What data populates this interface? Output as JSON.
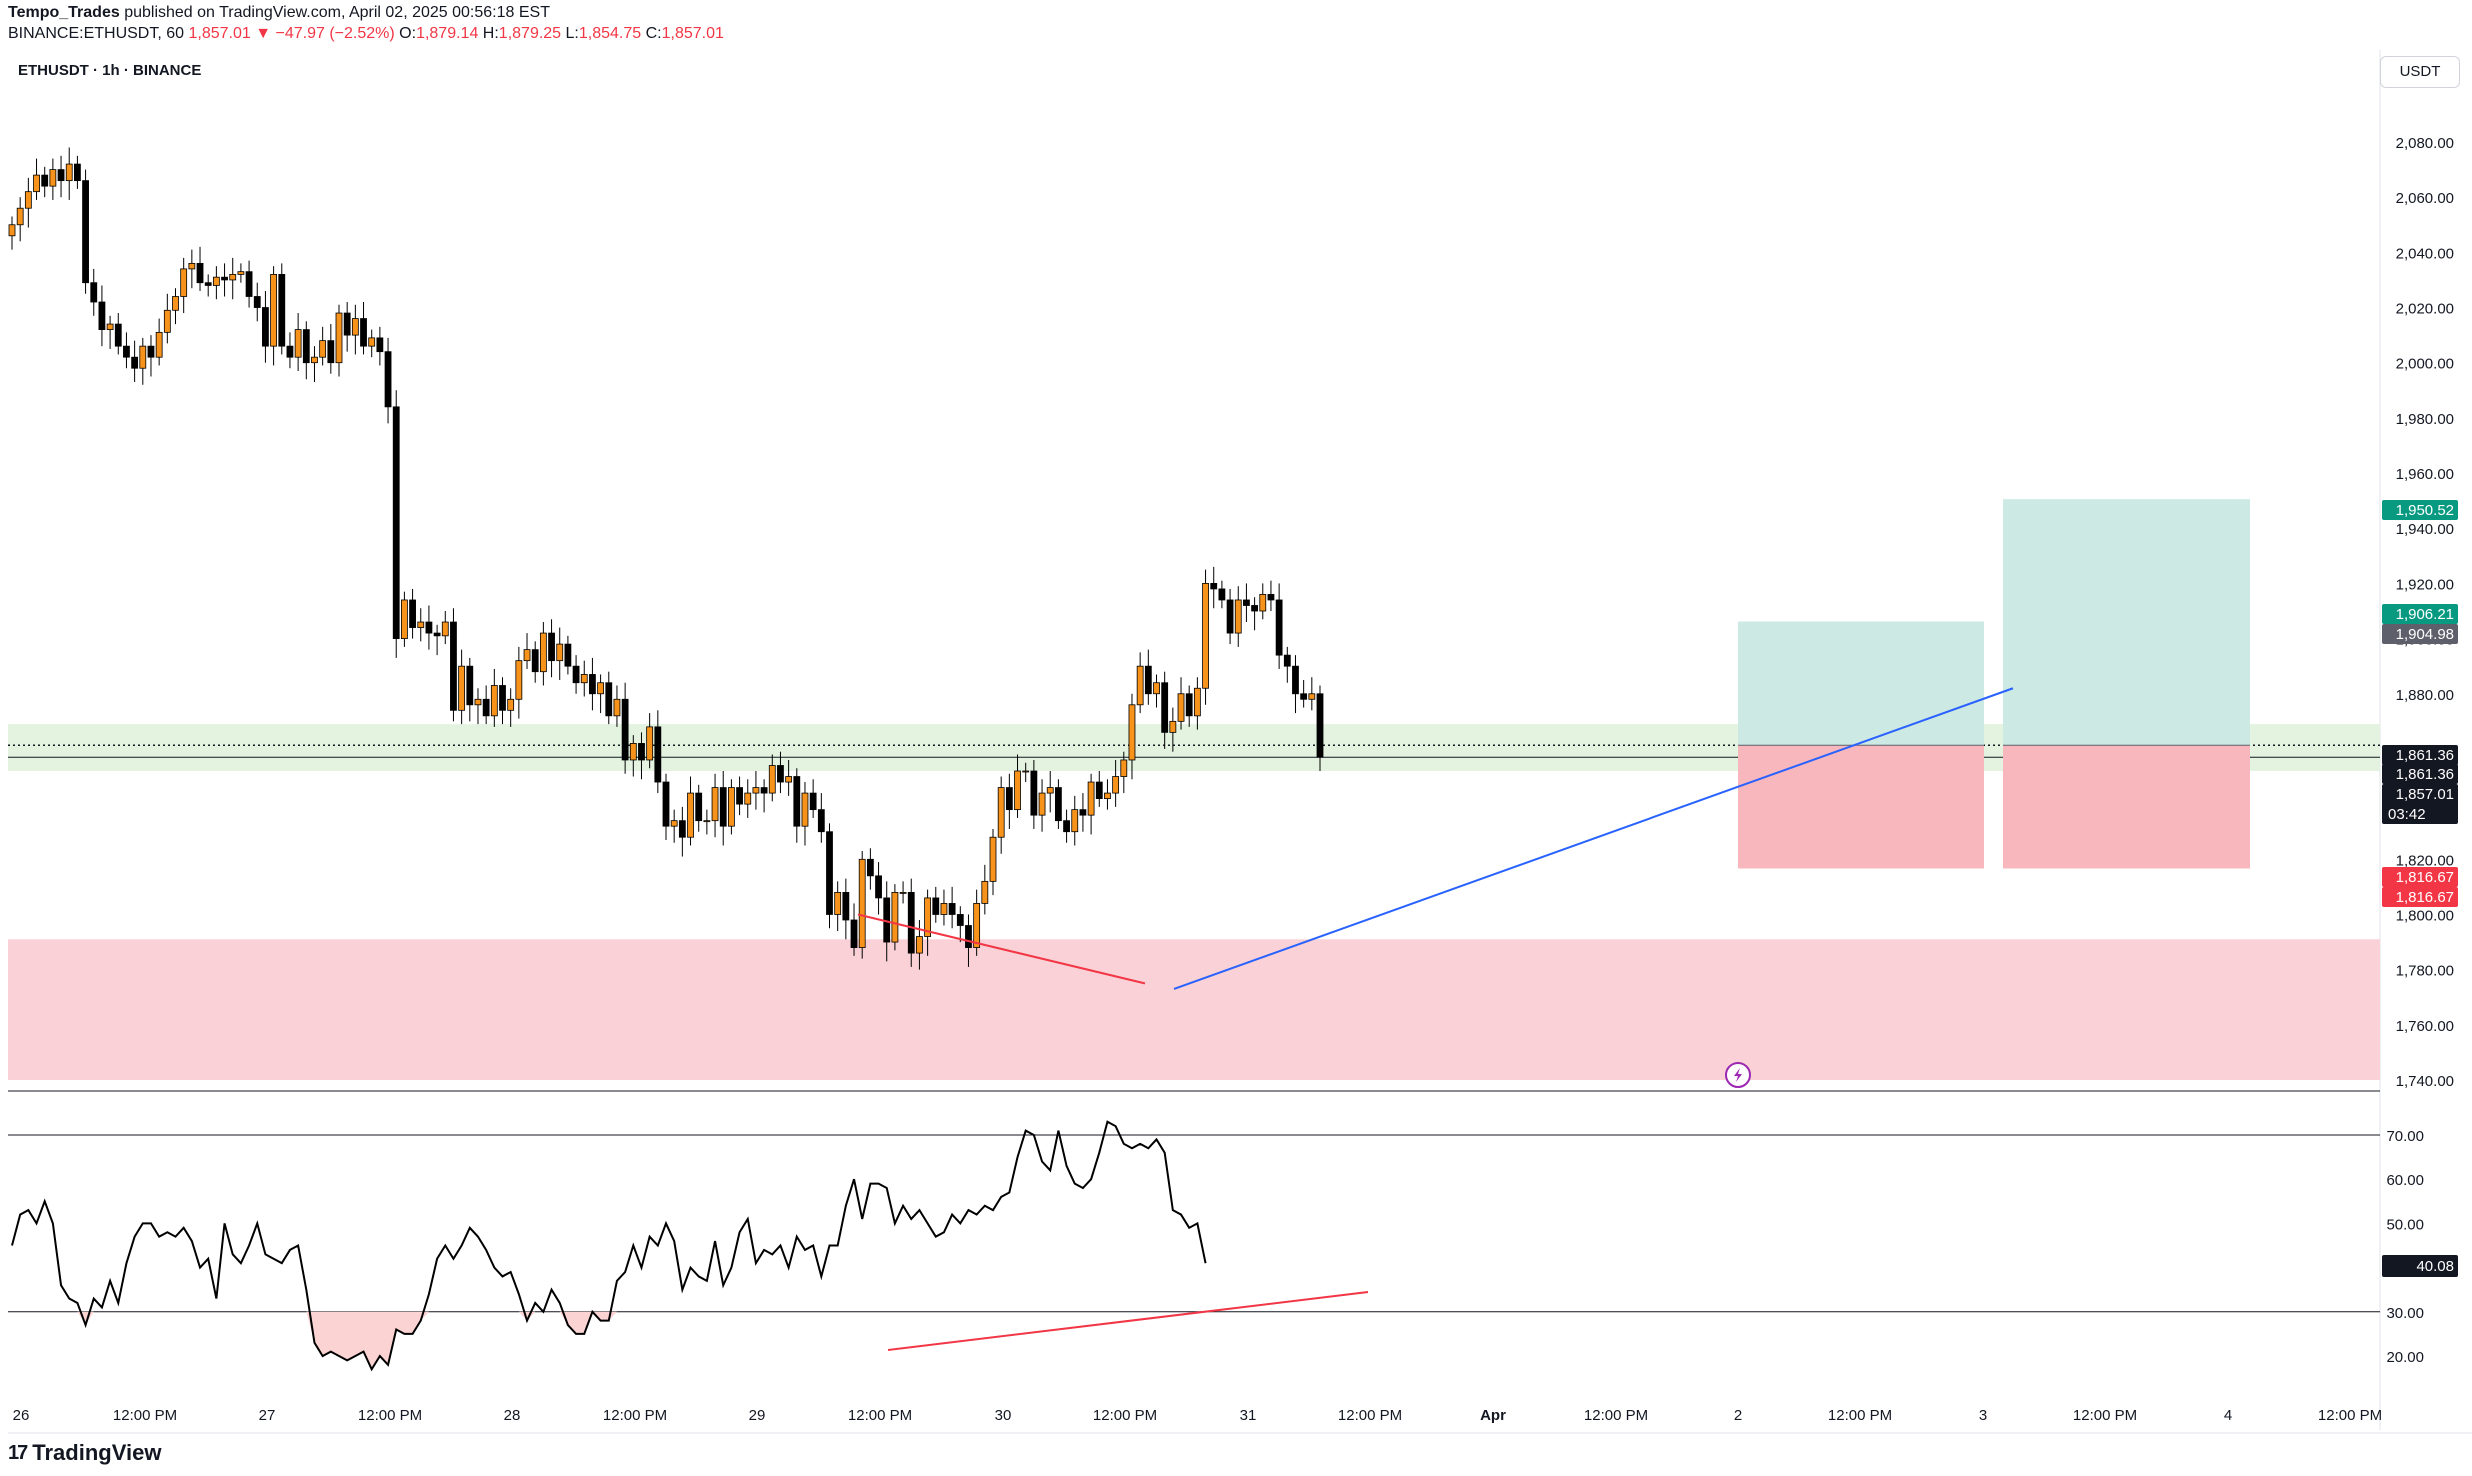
{
  "header": {
    "author": "Tempo_Trades",
    "published": "published on TradingView.com, April 02, 2025 00:56:18 EST",
    "symbol_line": "BINANCE:ETHUSDT, 60",
    "last": "1,857.01",
    "change": "▼ −47.97 (−2.52%)",
    "o_label": "O:",
    "o": "1,879.14",
    "h_label": "H:",
    "h": "1,879.25",
    "l_label": "L:",
    "l": "1,854.75",
    "c_label": "C:",
    "c": "1,857.01"
  },
  "legend_symbol": "ETHUSDT · 1h · BINANCE",
  "currency": "USDT",
  "brand": {
    "logo_icon": "tradingview-logo-icon",
    "name": "TradingView"
  },
  "colors": {
    "up": "#f7931a",
    "down": "#000000",
    "support_zone": "#e3f3e0",
    "demand_zone": "#f9d1d6",
    "target": "#cce9e4",
    "stop": "#f8b6bd",
    "trendline": "#2962ff",
    "divergence": "#f23645"
  },
  "chart_data": {
    "type": "candlestick",
    "price_axis": {
      "ylim": [
        1740,
        2100
      ],
      "ticks": [
        "2,080.00",
        "2,060.00",
        "2,040.00",
        "2,020.00",
        "2,000.00",
        "1,980.00",
        "1,960.00",
        "1,940.00",
        "1,920.00",
        "1,900.00",
        "1,880.00",
        "1,860.00",
        "1,840.00",
        "1,820.00",
        "1,800.00",
        "1,780.00",
        "1,760.00",
        "1,740.00"
      ]
    },
    "time_axis": {
      "ticks": [
        "26",
        "12:00 PM",
        "27",
        "12:00 PM",
        "28",
        "12:00 PM",
        "29",
        "12:00 PM",
        "30",
        "12:00 PM",
        "31",
        "12:00 PM",
        "Apr",
        "12:00 PM",
        "2",
        "12:00 PM",
        "3",
        "12:00 PM",
        "4",
        "12:00 PM"
      ]
    },
    "price_labels": [
      {
        "text": "1,950.52",
        "value": 1950.52,
        "color": "#089981"
      },
      {
        "text": "1,906.21",
        "value": 1906.21,
        "color": "#089981"
      },
      {
        "text": "1,904.98",
        "value": 1904.98,
        "color": "#5d606b"
      },
      {
        "text": "1,861.36",
        "value": 1861.36,
        "color": "#131722"
      },
      {
        "text": "1,861.36",
        "value": 1861.36,
        "color": "#131722"
      },
      {
        "text": "1,857.01",
        "value": 1857.01,
        "color": "#131722",
        "sub": "03:42"
      },
      {
        "text": "1,816.67",
        "value": 1816.67,
        "color": "#f23645"
      },
      {
        "text": "1,816.67",
        "value": 1816.67,
        "color": "#f23645"
      }
    ],
    "zones": [
      {
        "name": "support",
        "from": 1852,
        "to": 1869
      },
      {
        "name": "demand",
        "from": 1740,
        "to": 1791
      }
    ],
    "positions": [
      {
        "entry": 1861.36,
        "target": 1906.21,
        "stop": 1816.67
      },
      {
        "entry": 1861.36,
        "target": 1950.52,
        "stop": 1816.67
      }
    ],
    "closes": [
      2050,
      2056,
      2062,
      2068,
      2064,
      2070,
      2066,
      2072,
      2066,
      2029,
      2022,
      2012,
      2014,
      2006,
      2002,
      1998,
      2006,
      2002,
      2011,
      2019,
      2024,
      2034,
      2036,
      2029,
      2028,
      2031,
      2030,
      2032,
      2033,
      2024,
      2020,
      2006,
      2032,
      2006,
      2002,
      2012,
      2000,
      2002,
      2008,
      2000,
      2018,
      2010,
      2016,
      2006,
      2009,
      2004,
      1984,
      1900,
      1914,
      1904,
      1906,
      1902,
      1901,
      1906,
      1874,
      1890,
      1876,
      1878,
      1872,
      1883,
      1874,
      1878,
      1892,
      1896,
      1888,
      1902,
      1892,
      1898,
      1890,
      1884,
      1887,
      1880,
      1884,
      1872,
      1878,
      1856,
      1862,
      1856,
      1868,
      1848,
      1832,
      1834,
      1828,
      1844,
      1834,
      1834,
      1846,
      1832,
      1846,
      1840,
      1844,
      1846,
      1844,
      1854,
      1848,
      1850,
      1832,
      1844,
      1838,
      1830,
      1800,
      1808,
      1798,
      1788,
      1820,
      1814,
      1806,
      1790,
      1808,
      1808,
      1786,
      1792,
      1806,
      1800,
      1804,
      1800,
      1796,
      1788,
      1804,
      1812,
      1828,
      1846,
      1838,
      1852,
      1852,
      1836,
      1844,
      1846,
      1834,
      1830,
      1838,
      1836,
      1848,
      1842,
      1844,
      1850,
      1856,
      1876,
      1890,
      1880,
      1884,
      1866,
      1870,
      1880,
      1872,
      1882,
      1920,
      1918,
      1914,
      1902,
      1914,
      1912,
      1910,
      1916,
      1914,
      1894,
      1890,
      1880,
      1878,
      1880,
      1857
    ],
    "rsi": {
      "ylim": [
        13,
        80
      ],
      "ticks": [
        "70.00",
        "60.00",
        "50.00",
        "40.00",
        "30.00",
        "20.00"
      ],
      "levels": [
        70,
        30
      ],
      "current": "40.08",
      "values": [
        45,
        52,
        53,
        50,
        55,
        50,
        36,
        33,
        32,
        27,
        33,
        31,
        37,
        32,
        41,
        47,
        50,
        50,
        47,
        48,
        47,
        49,
        46,
        40,
        42,
        33,
        50,
        43,
        41,
        45,
        50,
        43,
        42,
        41,
        44,
        45,
        35,
        23,
        20,
        21,
        20,
        19,
        20,
        21,
        17,
        20,
        18,
        26,
        25,
        25,
        28,
        34,
        42,
        45,
        42,
        45,
        49,
        47,
        44,
        40,
        38,
        39,
        34,
        28,
        32,
        30,
        35,
        32,
        27,
        25,
        25,
        30,
        28,
        28,
        37,
        39,
        45,
        40,
        47,
        45,
        50,
        46,
        35,
        40,
        38,
        37,
        46,
        36,
        40,
        48,
        51,
        41,
        44,
        43,
        45,
        40,
        47,
        44,
        45,
        38,
        45,
        45,
        54,
        60,
        51,
        59,
        59,
        58,
        50,
        54,
        51,
        53,
        50,
        47,
        48,
        52,
        50,
        53,
        52,
        54,
        53,
        56,
        57,
        65,
        71,
        70,
        64,
        62,
        71,
        63,
        59,
        58,
        60,
        66,
        73,
        72,
        68,
        67,
        68,
        67,
        69,
        66,
        53,
        52,
        49,
        50,
        41
      ],
      "highlight_below": 30
    },
    "annotations": [
      {
        "type": "trendline",
        "color": "#2962ff"
      },
      {
        "type": "divergence-price",
        "color": "#f23645"
      },
      {
        "type": "divergence-rsi",
        "color": "#f23645"
      }
    ]
  }
}
